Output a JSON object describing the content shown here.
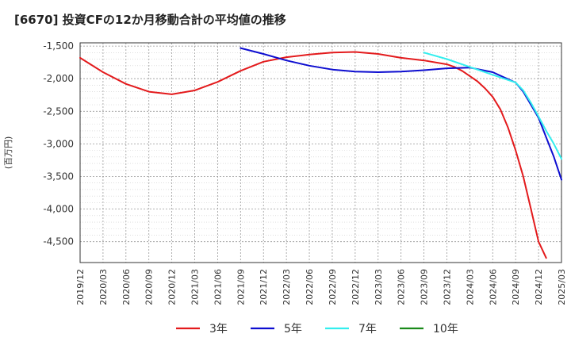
{
  "chart_data": {
    "type": "line",
    "title": "[6670]  投資CFの12か月移動合計の平均値の推移",
    "ylabel": "(百万円)",
    "xlabel": "",
    "x_ticks": [
      "2019/12",
      "2020/03",
      "2020/06",
      "2020/09",
      "2020/12",
      "2021/03",
      "2021/06",
      "2021/09",
      "2021/12",
      "2022/03",
      "2022/06",
      "2022/09",
      "2022/12",
      "2023/03",
      "2023/06",
      "2023/09",
      "2023/12",
      "2024/03",
      "2024/06",
      "2024/09",
      "2024/12",
      "2025/03"
    ],
    "y_ticks": [
      -1500,
      -2000,
      -2500,
      -3000,
      -3500,
      -4000,
      -4500
    ],
    "y_tick_labels": [
      "-1,500",
      "-2,000",
      "-2,500",
      "-3,000",
      "-3,500",
      "-4,000",
      "-4,500"
    ],
    "ylim": [
      -4820,
      -1450
    ],
    "grid": true,
    "legend_position": "bottom",
    "series": [
      {
        "name": "3年",
        "color": "#e31a1c",
        "points": [
          [
            "2019/12",
            -1680
          ],
          [
            "2020/03",
            -1900
          ],
          [
            "2020/06",
            -2080
          ],
          [
            "2020/09",
            -2200
          ],
          [
            "2020/12",
            -2240
          ],
          [
            "2021/03",
            -2180
          ],
          [
            "2021/06",
            -2050
          ],
          [
            "2021/09",
            -1880
          ],
          [
            "2021/12",
            -1740
          ],
          [
            "2022/03",
            -1670
          ],
          [
            "2022/06",
            -1630
          ],
          [
            "2022/09",
            -1600
          ],
          [
            "2022/12",
            -1590
          ],
          [
            "2023/03",
            -1620
          ],
          [
            "2023/06",
            -1680
          ],
          [
            "2023/09",
            -1720
          ],
          [
            "2023/12",
            -1780
          ],
          [
            "2024/01",
            -1820
          ],
          [
            "2024/02",
            -1880
          ],
          [
            "2024/03",
            -1960
          ],
          [
            "2024/04",
            -2040
          ],
          [
            "2024/05",
            -2150
          ],
          [
            "2024/06",
            -2280
          ],
          [
            "2024/07",
            -2470
          ],
          [
            "2024/08",
            -2750
          ],
          [
            "2024/09",
            -3100
          ],
          [
            "2024/10",
            -3500
          ],
          [
            "2024/11",
            -4000
          ],
          [
            "2024/12",
            -4500
          ],
          [
            "2025/01",
            -4750
          ]
        ]
      },
      {
        "name": "5年",
        "color": "#0d0dd0",
        "points": [
          [
            "2021/09",
            -1530
          ],
          [
            "2021/12",
            -1620
          ],
          [
            "2022/03",
            -1720
          ],
          [
            "2022/06",
            -1800
          ],
          [
            "2022/09",
            -1860
          ],
          [
            "2022/12",
            -1890
          ],
          [
            "2023/03",
            -1900
          ],
          [
            "2023/06",
            -1890
          ],
          [
            "2023/09",
            -1870
          ],
          [
            "2023/12",
            -1840
          ],
          [
            "2024/03",
            -1830
          ],
          [
            "2024/06",
            -1900
          ],
          [
            "2024/09",
            -2060
          ],
          [
            "2024/10",
            -2200
          ],
          [
            "2024/11",
            -2400
          ],
          [
            "2024/12",
            -2600
          ],
          [
            "2025/01",
            -2900
          ],
          [
            "2025/02",
            -3200
          ],
          [
            "2025/03",
            -3550
          ]
        ]
      },
      {
        "name": "7年",
        "color": "#33eeee",
        "points": [
          [
            "2023/09",
            -1600
          ],
          [
            "2023/12",
            -1700
          ],
          [
            "2024/03",
            -1820
          ],
          [
            "2024/06",
            -1940
          ],
          [
            "2024/09",
            -2060
          ],
          [
            "2024/10",
            -2180
          ],
          [
            "2024/11",
            -2370
          ],
          [
            "2024/12",
            -2580
          ],
          [
            "2025/01",
            -2800
          ],
          [
            "2025/02",
            -3000
          ],
          [
            "2025/03",
            -3230
          ]
        ]
      },
      {
        "name": "10年",
        "color": "#1a8a1a",
        "points": []
      }
    ]
  }
}
